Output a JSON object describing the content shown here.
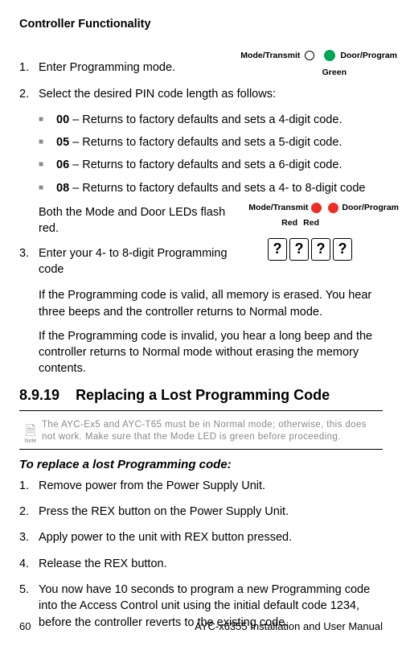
{
  "header": {
    "title": "Controller Functionality"
  },
  "led1": {
    "left": "Mode/Transmit",
    "right": "Door/Program",
    "green": "Green",
    "fill_color": "#00a651"
  },
  "led2": {
    "left": "Mode/Transmit",
    "right": "Door/Program",
    "red1": "Red",
    "red2": "Red",
    "fill_color": "#ee2d24"
  },
  "qbox": {
    "glyph": "?"
  },
  "steps_a": {
    "s1": {
      "n": "1.",
      "t": "Enter Programming mode."
    },
    "s2": {
      "n": "2.",
      "t": "Select the desired PIN code length as follows:"
    },
    "bullets": {
      "b1": {
        "code": "00",
        "t": " – Returns to factory defaults and sets a 4-digit code."
      },
      "b2": {
        "code": "05",
        "t": " – Returns to factory defaults and sets a 5-digit code."
      },
      "b3": {
        "code": "06",
        "t": " – Returns to factory defaults and sets a 6-digit code."
      },
      "b4": {
        "code": "08",
        "t": " – Returns to factory defaults and sets a 4- to 8-digit code"
      }
    },
    "both_leds": "Both the Mode and Door LEDs flash red.",
    "s3": {
      "n": "3.",
      "t": "Enter your 4- to 8-digit Programming code"
    },
    "valid": "If the Programming code is valid, all memory is erased. You hear three beeps and the controller returns to Normal mode.",
    "invalid": "If the Programming code is invalid, you hear a long beep and the controller returns to Normal mode without erasing the memory contents."
  },
  "section": {
    "num": "8.9.19",
    "title": "Replacing a Lost Programming Code"
  },
  "note": {
    "label": "Note",
    "text": "The AYC-Ex5 and AYC-T65 must be in Normal mode; otherwise, this does not work. Make sure that the Mode LED is green before proceeding."
  },
  "subheading": "To replace a lost Programming code:",
  "steps_b": {
    "s1": {
      "n": "1.",
      "t": "Remove power from the Power Supply Unit."
    },
    "s2": {
      "n": "2.",
      "t": "Press the REX button on the Power Supply Unit."
    },
    "s3": {
      "n": "3.",
      "t": "Apply power to the unit with REX button pressed."
    },
    "s4": {
      "n": "4.",
      "t": "Release the REX button."
    },
    "s5": {
      "n": "5.",
      "t": "You now have 10 seconds to program a new Programming code into the Access Control unit using the initial default code 1234, before the controller reverts to the existing code."
    }
  },
  "footer": {
    "page": "60",
    "manual": "AYC-x6355 Installation and User Manual"
  }
}
